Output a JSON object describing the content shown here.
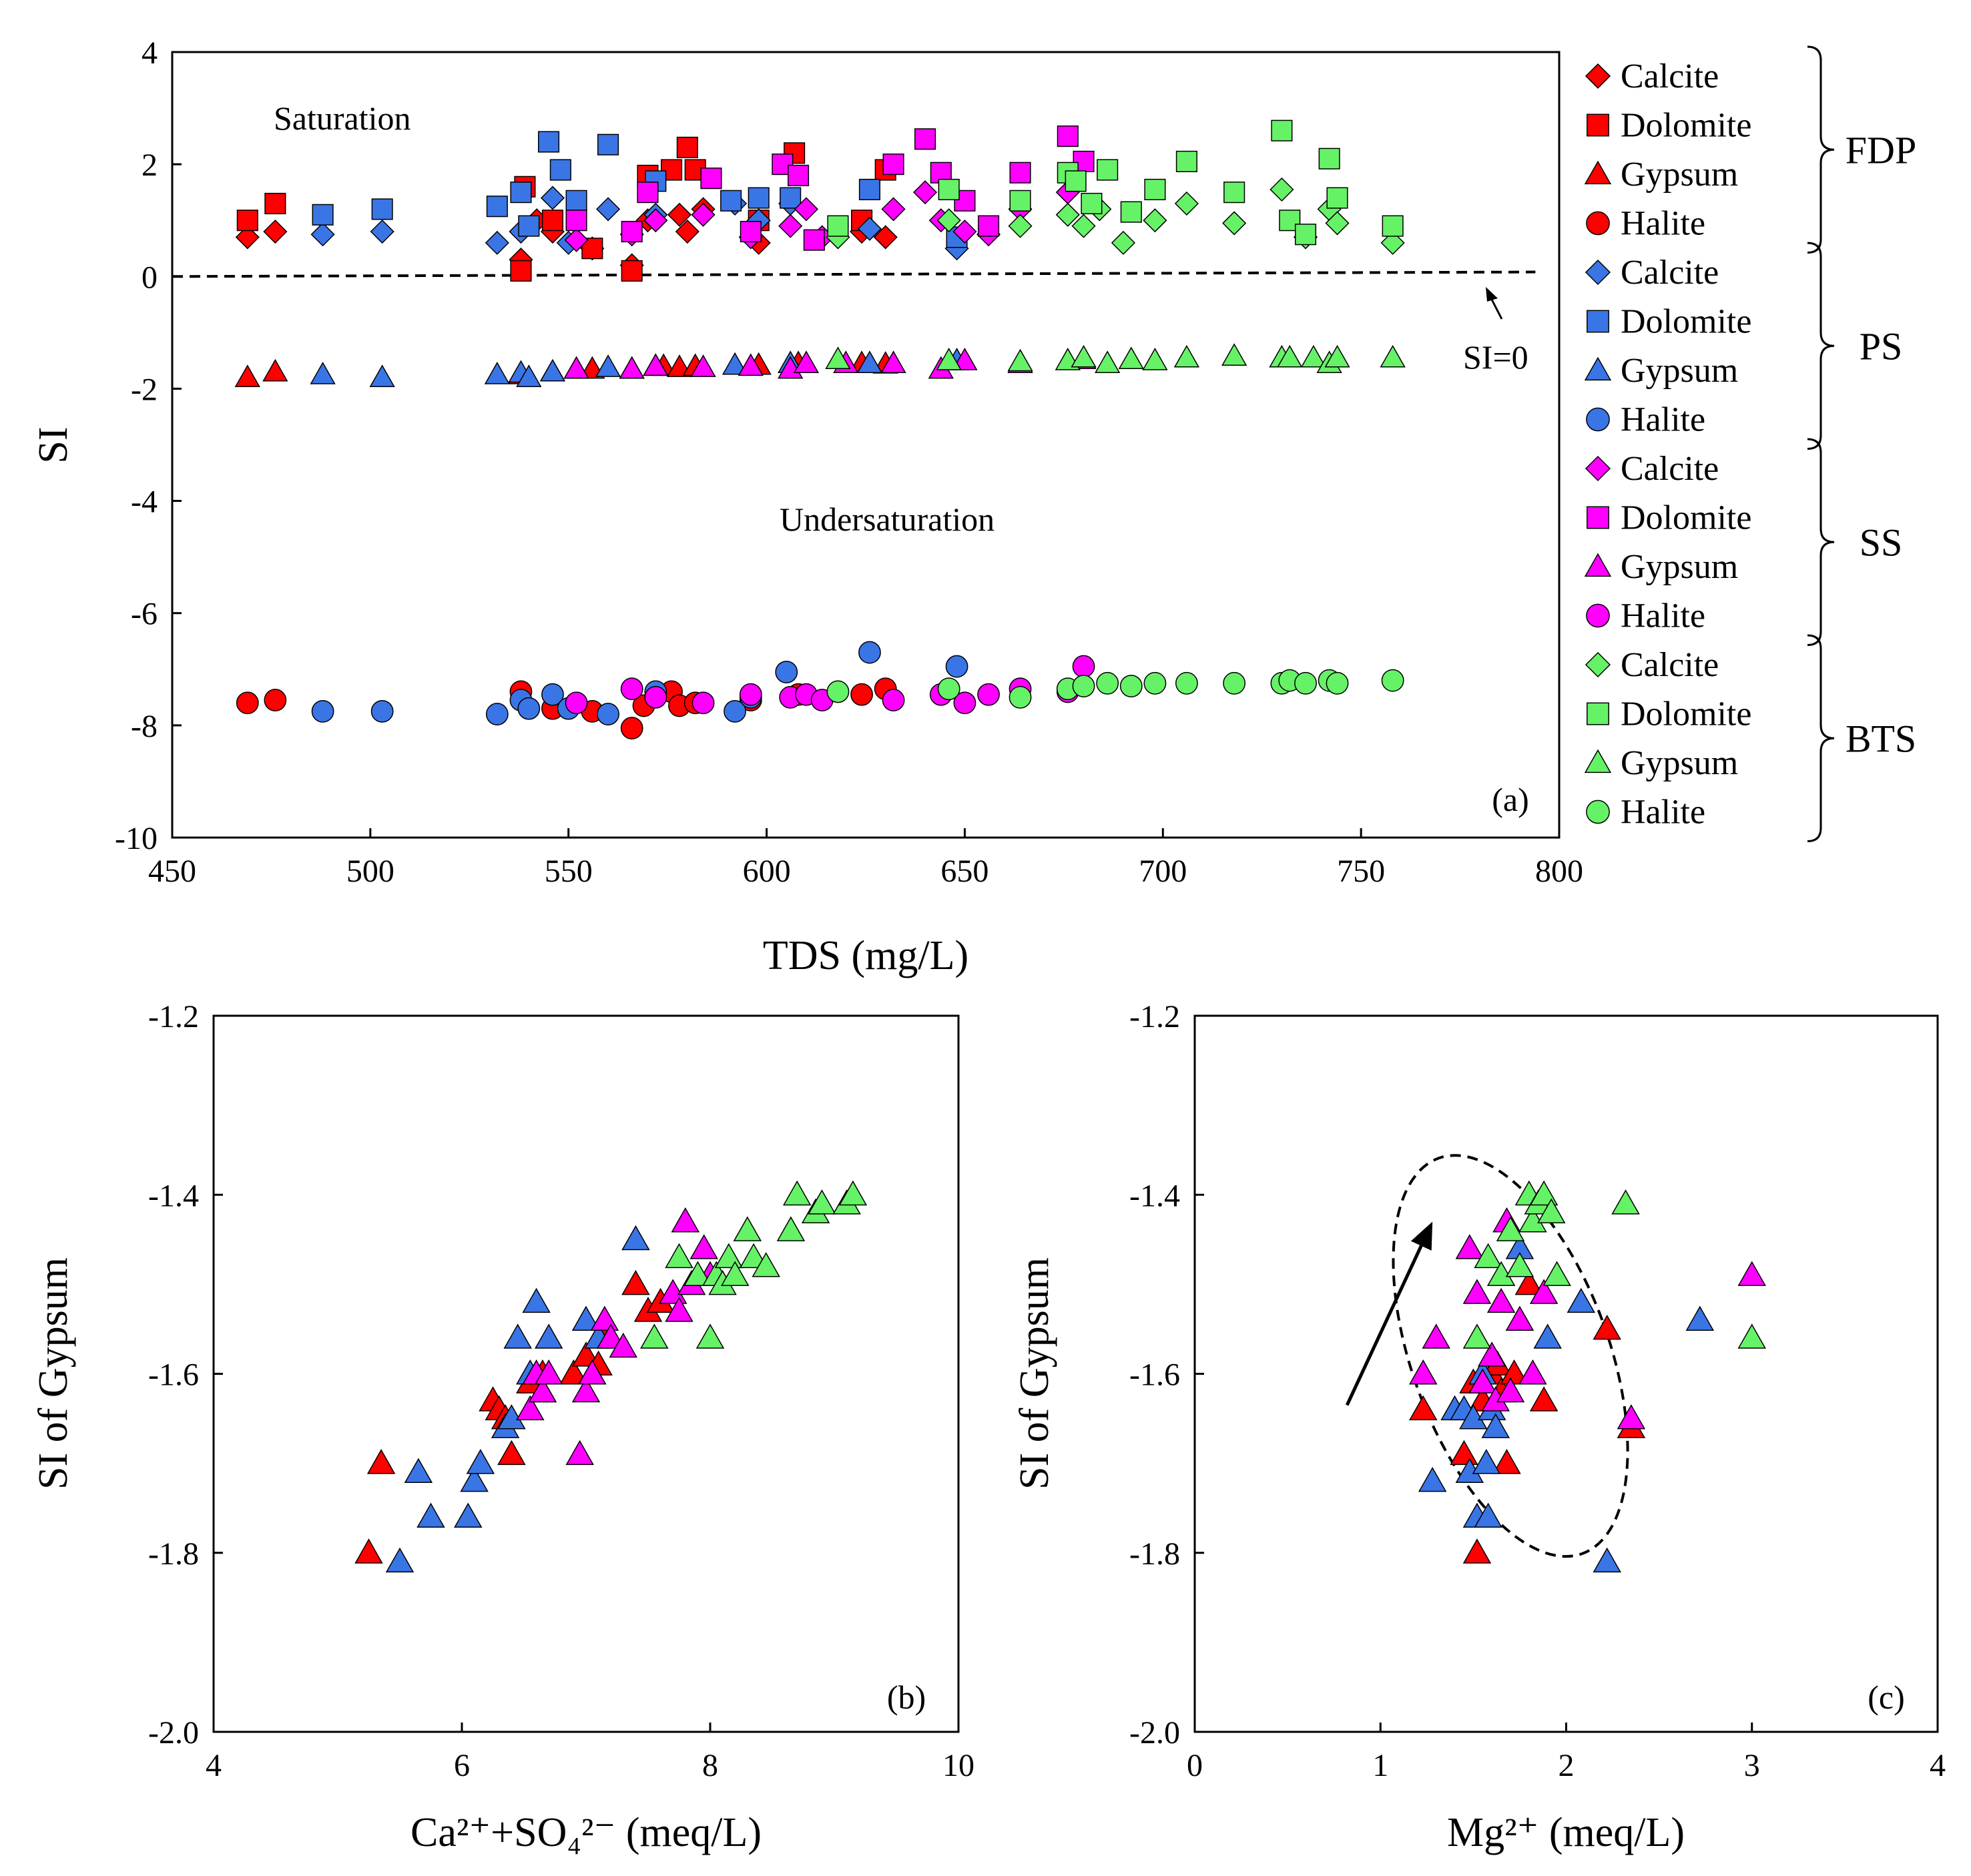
{
  "figure": {
    "groups": [
      {
        "id": "FDP",
        "label": "FDP",
        "color": "#ff0000"
      },
      {
        "id": "PS",
        "label": "PS",
        "color": "#3a75e6"
      },
      {
        "id": "SS",
        "label": "SS",
        "color": "#ff00ff"
      },
      {
        "id": "BTS",
        "label": "BTS",
        "color": "#66f266"
      }
    ],
    "minerals": [
      {
        "id": "calcite",
        "label": "Calcite",
        "marker": "diamond"
      },
      {
        "id": "dolomite",
        "label": "Dolomite",
        "marker": "square"
      },
      {
        "id": "gypsum",
        "label": "Gypsum",
        "marker": "triangle"
      },
      {
        "id": "halite",
        "label": "Halite",
        "marker": "circle"
      }
    ]
  },
  "chart_data": [
    {
      "id": "a",
      "type": "scatter",
      "panel_label": "(a)",
      "xlabel": "TDS (mg/L)",
      "ylabel": "SI",
      "xlim": [
        450,
        800
      ],
      "ylim": [
        -10,
        4
      ],
      "xticks": [
        "450",
        "500",
        "550",
        "600",
        "650",
        "700",
        "750",
        "800"
      ],
      "yticks": [
        "-10",
        "-8",
        "-6",
        "-4",
        "-2",
        "0",
        "2",
        "4"
      ],
      "annotations": {
        "saturation": "Saturation",
        "undersaturation": "Undersaturation",
        "si_zero": "SI=0"
      },
      "reference_line": {
        "x": [
          450,
          794
        ],
        "y": [
          0,
          0.08
        ]
      },
      "series": [
        {
          "group": "FDP",
          "mineral": "calcite",
          "x": [
            469,
            476,
            538,
            542,
            546,
            556,
            566,
            570,
            578,
            580,
            584,
            598,
            606,
            624,
            630
          ],
          "y": [
            0.7,
            0.8,
            0.3,
            1.0,
            0.8,
            0.5,
            0.2,
            1.0,
            1.1,
            0.8,
            1.2,
            0.6,
            1.3,
            0.8,
            0.7
          ]
        },
        {
          "group": "FDP",
          "mineral": "dolomite",
          "x": [
            469,
            476,
            538,
            539,
            546,
            556,
            566,
            570,
            576,
            580,
            582,
            598,
            607,
            624,
            630
          ],
          "y": [
            1.0,
            1.3,
            0.1,
            1.6,
            1.0,
            0.5,
            0.1,
            1.8,
            1.9,
            2.3,
            1.9,
            1.0,
            2.2,
            1.0,
            1.9
          ]
        },
        {
          "group": "FDP",
          "mineral": "gypsum",
          "x": [
            469,
            476,
            538,
            546,
            556,
            566,
            574,
            578,
            582,
            598,
            608,
            624,
            630
          ],
          "y": [
            -1.8,
            -1.7,
            -1.75,
            -1.7,
            -1.65,
            -1.65,
            -1.6,
            -1.62,
            -1.6,
            -1.58,
            -1.55,
            -1.55,
            -1.56
          ]
        },
        {
          "group": "FDP",
          "mineral": "halite",
          "x": [
            469,
            476,
            538,
            546,
            556,
            566,
            569,
            576,
            578,
            582,
            596,
            608,
            624,
            630
          ],
          "y": [
            -7.6,
            -7.55,
            -7.4,
            -7.7,
            -7.75,
            -8.05,
            -7.65,
            -7.4,
            -7.65,
            -7.6,
            -7.55,
            -7.45,
            -7.45,
            -7.35
          ]
        },
        {
          "group": "PS",
          "mineral": "calcite",
          "x": [
            488,
            503,
            532,
            538,
            546,
            550,
            560,
            572,
            592,
            598,
            606,
            626,
            648
          ],
          "y": [
            0.75,
            0.8,
            0.6,
            0.8,
            1.4,
            0.6,
            1.2,
            1.1,
            1.3,
            1.0,
            1.3,
            0.85,
            0.5
          ]
        },
        {
          "group": "PS",
          "mineral": "dolomite",
          "x": [
            488,
            503,
            532,
            538,
            540,
            545,
            548,
            552,
            560,
            572,
            591,
            598,
            606,
            626,
            648
          ],
          "y": [
            1.1,
            1.2,
            1.25,
            1.5,
            0.9,
            2.4,
            1.9,
            1.35,
            2.35,
            1.7,
            1.35,
            1.4,
            1.4,
            1.55,
            0.7
          ]
        },
        {
          "group": "PS",
          "mineral": "gypsum",
          "x": [
            488,
            503,
            532,
            538,
            540,
            546,
            552,
            560,
            572,
            592,
            606,
            626,
            648
          ],
          "y": [
            -1.75,
            -1.8,
            -1.75,
            -1.72,
            -1.8,
            -1.7,
            -1.65,
            -1.62,
            -1.6,
            -1.58,
            -1.55,
            -1.55,
            -1.5
          ]
        },
        {
          "group": "PS",
          "mineral": "halite",
          "x": [
            488,
            503,
            532,
            538,
            540,
            546,
            550,
            560,
            572,
            592,
            596,
            605,
            626,
            648
          ],
          "y": [
            -7.75,
            -7.75,
            -7.8,
            -7.55,
            -7.7,
            -7.45,
            -7.7,
            -7.8,
            -7.4,
            -7.75,
            -7.5,
            -7.05,
            -6.7,
            -6.95
          ]
        },
        {
          "group": "SS",
          "mineral": "calcite",
          "x": [
            552,
            566,
            572,
            584,
            596,
            606,
            610,
            614,
            632,
            640,
            644,
            650,
            656,
            664,
            676
          ],
          "y": [
            0.65,
            0.75,
            1.0,
            1.1,
            0.7,
            0.9,
            1.2,
            0.7,
            1.2,
            1.5,
            1.0,
            0.8,
            0.75,
            1.2,
            1.5
          ]
        },
        {
          "group": "SS",
          "mineral": "dolomite",
          "x": [
            552,
            566,
            570,
            586,
            596,
            604,
            608,
            612,
            632,
            640,
            644,
            650,
            656,
            664,
            676,
            680
          ],
          "y": [
            1.0,
            0.8,
            1.5,
            1.75,
            0.8,
            2.0,
            1.8,
            0.65,
            2.0,
            2.45,
            1.85,
            1.35,
            0.9,
            1.85,
            2.5,
            2.05
          ]
        },
        {
          "group": "SS",
          "mineral": "gypsum",
          "x": [
            552,
            566,
            572,
            584,
            596,
            606,
            610,
            620,
            632,
            644,
            650,
            664,
            680
          ],
          "y": [
            -1.65,
            -1.65,
            -1.6,
            -1.62,
            -1.6,
            -1.65,
            -1.55,
            -1.55,
            -1.55,
            -1.65,
            -1.5,
            -1.55,
            -1.48
          ]
        },
        {
          "group": "SS",
          "mineral": "halite",
          "x": [
            552,
            566,
            572,
            584,
            596,
            606,
            610,
            614,
            632,
            644,
            650,
            656,
            664,
            676,
            680
          ],
          "y": [
            -7.6,
            -7.35,
            -7.5,
            -7.6,
            -7.45,
            -7.5,
            -7.45,
            -7.55,
            -7.55,
            -7.45,
            -7.6,
            -7.45,
            -7.35,
            -7.4,
            -6.95
          ]
        },
        {
          "group": "BTS",
          "mineral": "calcite",
          "x": [
            618,
            646,
            664,
            676,
            680,
            684,
            690,
            698,
            706,
            718,
            730,
            736,
            742,
            744,
            758
          ],
          "y": [
            0.7,
            1.0,
            0.9,
            1.1,
            0.9,
            1.2,
            0.6,
            1.0,
            1.3,
            0.95,
            1.55,
            0.7,
            1.2,
            0.95,
            0.6
          ]
        },
        {
          "group": "BTS",
          "mineral": "dolomite",
          "x": [
            618,
            646,
            664,
            676,
            678,
            682,
            686,
            692,
            698,
            706,
            718,
            730,
            732,
            736,
            742,
            744,
            758
          ],
          "y": [
            0.9,
            1.55,
            1.35,
            1.85,
            1.7,
            1.3,
            1.9,
            1.15,
            1.55,
            2.05,
            1.5,
            2.6,
            1.0,
            0.75,
            2.1,
            1.4,
            0.9
          ]
        },
        {
          "group": "BTS",
          "mineral": "gypsum",
          "x": [
            618,
            646,
            664,
            676,
            680,
            686,
            692,
            698,
            706,
            718,
            730,
            732,
            738,
            742,
            744,
            758
          ],
          "y": [
            -1.48,
            -1.5,
            -1.52,
            -1.5,
            -1.45,
            -1.55,
            -1.48,
            -1.5,
            -1.45,
            -1.42,
            -1.45,
            -1.45,
            -1.45,
            -1.55,
            -1.45,
            -1.45
          ]
        },
        {
          "group": "BTS",
          "mineral": "halite",
          "x": [
            618,
            646,
            664,
            676,
            680,
            686,
            692,
            698,
            706,
            718,
            730,
            732,
            736,
            742,
            744,
            758
          ],
          "y": [
            -7.4,
            -7.35,
            -7.5,
            -7.35,
            -7.3,
            -7.25,
            -7.3,
            -7.25,
            -7.25,
            -7.25,
            -7.25,
            -7.2,
            -7.25,
            -7.2,
            -7.25,
            -7.2
          ]
        }
      ]
    },
    {
      "id": "b",
      "type": "scatter",
      "panel_label": "(b)",
      "xlabel": "Ca²⁺+SO₄²⁻ (meq/L)",
      "ylabel": "SI of Gypsum",
      "xlim": [
        4,
        10
      ],
      "ylim": [
        -2.0,
        -1.2
      ],
      "xticks": [
        "4",
        "6",
        "8",
        "10"
      ],
      "yticks": [
        "-2.0",
        "-1.8",
        "-1.6",
        "-1.4",
        "-1.2"
      ],
      "series": [
        {
          "group": "FDP",
          "mineral": "gypsum",
          "x": [
            5.25,
            5.35,
            6.25,
            6.3,
            6.35,
            6.4,
            6.55,
            6.65,
            6.9,
            7.0,
            7.1,
            7.15,
            7.4,
            7.5,
            7.6
          ],
          "y": [
            -1.8,
            -1.7,
            -1.63,
            -1.64,
            -1.65,
            -1.69,
            -1.61,
            -1.6,
            -1.6,
            -1.58,
            -1.59,
            -1.55,
            -1.5,
            -1.53,
            -1.52
          ]
        },
        {
          "group": "PS",
          "mineral": "gypsum",
          "x": [
            5.5,
            5.65,
            5.75,
            6.05,
            6.1,
            6.15,
            6.35,
            6.4,
            6.45,
            6.55,
            6.6,
            6.65,
            6.7,
            7.0,
            7.05,
            7.1,
            7.4
          ],
          "y": [
            -1.81,
            -1.71,
            -1.76,
            -1.76,
            -1.72,
            -1.7,
            -1.66,
            -1.65,
            -1.56,
            -1.6,
            -1.52,
            -1.62,
            -1.56,
            -1.54,
            -1.6,
            -1.56,
            -1.45
          ]
        },
        {
          "group": "SS",
          "mineral": "gypsum",
          "x": [
            6.55,
            6.6,
            6.65,
            6.7,
            6.95,
            7.0,
            7.05,
            7.15,
            7.2,
            7.3,
            7.7,
            7.75,
            7.8,
            7.85,
            7.95,
            8.0
          ],
          "y": [
            -1.64,
            -1.6,
            -1.62,
            -1.6,
            -1.69,
            -1.62,
            -1.6,
            -1.54,
            -1.56,
            -1.57,
            -1.51,
            -1.53,
            -1.43,
            -1.5,
            -1.46,
            -1.49
          ]
        },
        {
          "group": "BTS",
          "mineral": "gypsum",
          "x": [
            7.55,
            7.75,
            7.9,
            8.0,
            8.05,
            8.1,
            8.15,
            8.2,
            8.3,
            8.35,
            8.45,
            8.65,
            8.7,
            8.85,
            8.9,
            9.1,
            9.15
          ],
          "y": [
            -1.56,
            -1.47,
            -1.49,
            -1.56,
            -1.49,
            -1.5,
            -1.47,
            -1.49,
            -1.44,
            -1.47,
            -1.48,
            -1.44,
            -1.4,
            -1.42,
            -1.41,
            -1.41,
            -1.4
          ]
        }
      ]
    },
    {
      "id": "c",
      "type": "scatter",
      "panel_label": "(c)",
      "xlabel": "Mg²⁺ (meq/L)",
      "ylabel": "SI of Gypsum",
      "xlim": [
        0,
        4
      ],
      "ylim": [
        -2.0,
        -1.2
      ],
      "xticks": [
        "0",
        "1",
        "2",
        "3",
        "4"
      ],
      "yticks": [
        "-2.0",
        "-1.8",
        "-1.6",
        "-1.4",
        "-1.2"
      ],
      "ellipse": {
        "center": [
          1.7,
          -1.58
        ],
        "rx": 0.53,
        "ry": 0.235,
        "rotation": -20
      },
      "arrow": {
        "from": [
          0.82,
          -1.635
        ],
        "to": [
          1.28,
          -1.43
        ]
      },
      "series": [
        {
          "group": "FDP",
          "mineral": "gypsum",
          "x": [
            1.23,
            1.45,
            1.5,
            1.52,
            1.55,
            1.6,
            1.63,
            1.65,
            1.68,
            1.72,
            1.8,
            1.88,
            2.22,
            2.35
          ],
          "y": [
            -1.64,
            -1.69,
            -1.61,
            -1.8,
            -1.63,
            -1.6,
            -1.59,
            -1.62,
            -1.7,
            -1.6,
            -1.5,
            -1.63,
            -1.55,
            -1.66
          ]
        },
        {
          "group": "PS",
          "mineral": "gypsum",
          "x": [
            1.28,
            1.4,
            1.45,
            1.48,
            1.5,
            1.52,
            1.55,
            1.57,
            1.58,
            1.6,
            1.62,
            1.75,
            1.9,
            2.08,
            2.22,
            2.72
          ],
          "y": [
            -1.72,
            -1.64,
            -1.64,
            -1.71,
            -1.65,
            -1.76,
            -1.6,
            -1.7,
            -1.76,
            -1.64,
            -1.66,
            -1.46,
            -1.56,
            -1.52,
            -1.81,
            -1.54
          ]
        },
        {
          "group": "SS",
          "mineral": "gypsum",
          "x": [
            1.23,
            1.3,
            1.48,
            1.52,
            1.55,
            1.6,
            1.62,
            1.65,
            1.68,
            1.7,
            1.75,
            1.82,
            1.88,
            2.35,
            3.0
          ],
          "y": [
            -1.6,
            -1.56,
            -1.46,
            -1.51,
            -1.61,
            -1.58,
            -1.63,
            -1.52,
            -1.43,
            -1.62,
            -1.54,
            -1.6,
            -1.51,
            -1.65,
            -1.49
          ]
        },
        {
          "group": "BTS",
          "mineral": "gypsum",
          "x": [
            1.52,
            1.58,
            1.65,
            1.7,
            1.75,
            1.8,
            1.82,
            1.85,
            1.88,
            1.92,
            1.95,
            2.32,
            3.0
          ],
          "y": [
            -1.56,
            -1.47,
            -1.49,
            -1.44,
            -1.48,
            -1.4,
            -1.43,
            -1.41,
            -1.4,
            -1.42,
            -1.49,
            -1.41,
            -1.56
          ]
        }
      ]
    }
  ]
}
